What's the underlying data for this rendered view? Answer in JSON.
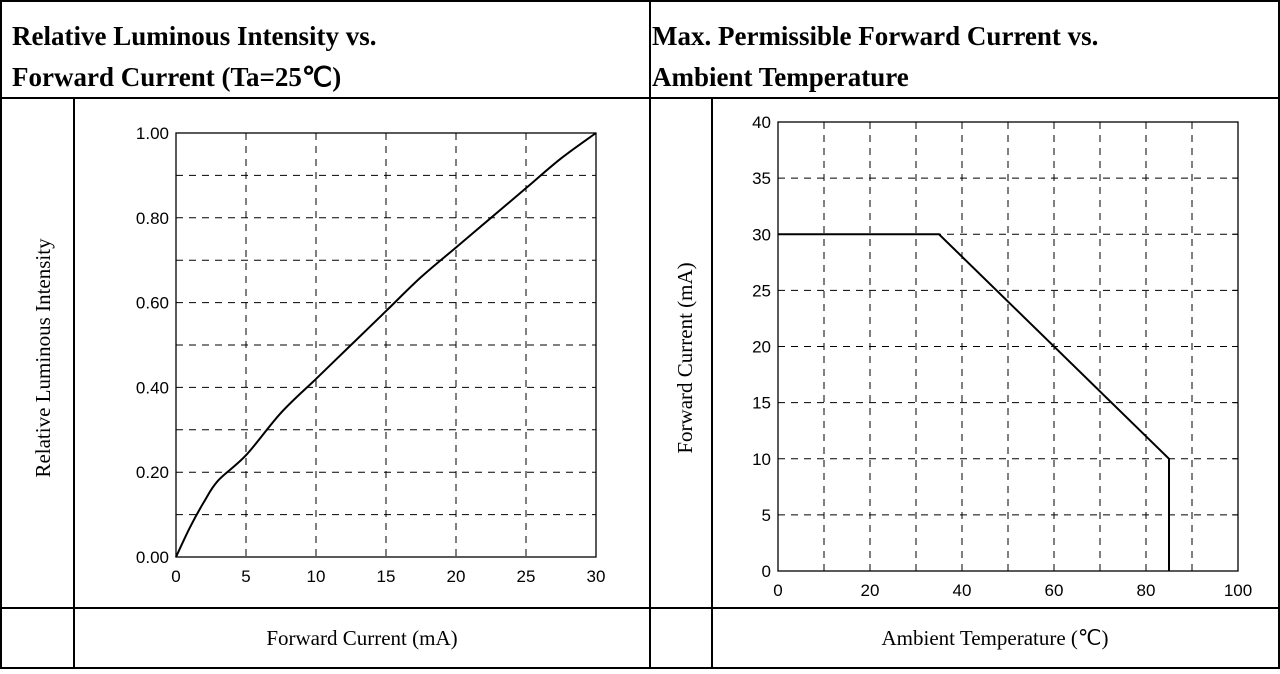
{
  "panels": [
    {
      "title_line1": "Relative Luminous Intensity vs.",
      "title_line2": "Forward Current (Ta=25℃)",
      "ylabel": "Relative Luminous Intensity",
      "xlabel": "Forward Current (mA)"
    },
    {
      "title_line1": "Max. Permissible Forward Current vs.",
      "title_line2": "Ambient Temperature",
      "ylabel": "Forward Current (mA)",
      "xlabel": "Ambient Temperature (℃)"
    }
  ],
  "chart_data": [
    {
      "type": "line",
      "title": "Relative Luminous Intensity vs. Forward Current (Ta=25℃)",
      "xlabel": "Forward Current (mA)",
      "ylabel": "Relative Luminous Intensity",
      "xlim": [
        0,
        30
      ],
      "ylim": [
        0,
        1
      ],
      "x_ticks": [
        0,
        5,
        10,
        15,
        20,
        25,
        30
      ],
      "x_tick_labels": [
        "0",
        "5",
        "10",
        "15",
        "20",
        "25",
        "30"
      ],
      "y_ticks": [
        0,
        0.2,
        0.4,
        0.6,
        0.8,
        1.0
      ],
      "y_tick_labels": [
        "0.00",
        "0.20",
        "0.40",
        "0.60",
        "0.80",
        "1.00"
      ],
      "grid": true,
      "series": [
        {
          "x": [
            0,
            1,
            2,
            3,
            5,
            7.5,
            10,
            12.5,
            15,
            17.5,
            20,
            22.5,
            25,
            27.5,
            30
          ],
          "values": [
            0,
            0.07,
            0.13,
            0.18,
            0.24,
            0.34,
            0.42,
            0.5,
            0.58,
            0.66,
            0.73,
            0.8,
            0.87,
            0.94,
            1.0
          ]
        }
      ]
    },
    {
      "type": "line",
      "title": "Max. Permissible Forward Current vs. Ambient Temperature",
      "xlabel": "Ambient Temperature (℃)",
      "ylabel": "Forward Current (mA)",
      "xlim": [
        0,
        100
      ],
      "ylim": [
        0,
        40
      ],
      "x_ticks": [
        0,
        20,
        40,
        60,
        80,
        100
      ],
      "x_tick_labels": [
        "0",
        "20",
        "40",
        "60",
        "80",
        "100"
      ],
      "y_ticks": [
        0,
        5,
        10,
        15,
        20,
        25,
        30,
        35,
        40
      ],
      "y_tick_labels": [
        "0",
        "5",
        "10",
        "15",
        "20",
        "25",
        "30",
        "35",
        "40"
      ],
      "grid": true,
      "series": [
        {
          "x": [
            0,
            35,
            85,
            85
          ],
          "values": [
            30,
            30,
            10,
            0
          ]
        }
      ]
    }
  ]
}
